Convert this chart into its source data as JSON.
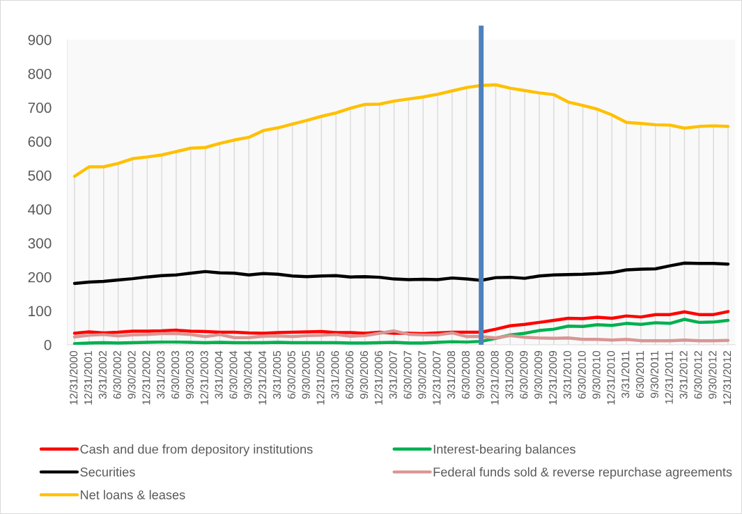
{
  "chart_data": {
    "type": "line",
    "categories": [
      "12/31/2000",
      "12/31/2001",
      "3/31/2002",
      "6/30/2002",
      "9/30/2002",
      "12/31/2002",
      "3/31/2003",
      "6/30/2003",
      "9/30/2003",
      "12/31/2003",
      "3/31/2004",
      "6/30/2004",
      "9/30/2004",
      "12/31/2004",
      "3/31/2005",
      "6/30/2005",
      "9/30/2005",
      "12/31/2005",
      "3/31/2006",
      "6/30/2006",
      "9/30/2006",
      "12/31/2006",
      "3/31/2007",
      "6/30/2007",
      "9/30/2007",
      "12/31/2007",
      "3/31/2008",
      "6/30/2008",
      "9/30/2008",
      "12/31/2008",
      "3/31/2009",
      "6/30/2009",
      "9/30/2009",
      "12/31/2009",
      "3/31/2010",
      "6/30/2010",
      "9/30/2010",
      "12/31/2010",
      "3/31/2011",
      "6/30/2011",
      "9/30/2011",
      "12/31/2011",
      "3/31/2012",
      "6/30/2012",
      "9/30/2012",
      "12/31/2012"
    ],
    "series": [
      {
        "name": "Cash and due from depository institutions",
        "color": "#ff0000",
        "values": [
          34,
          38,
          35,
          37,
          40,
          40,
          41,
          43,
          40,
          39,
          37,
          37,
          35,
          34,
          36,
          37,
          38,
          39,
          36,
          36,
          34,
          37,
          34,
          34,
          33,
          35,
          37,
          37,
          37,
          46,
          56,
          60,
          66,
          72,
          78,
          77,
          81,
          78,
          85,
          82,
          89,
          89,
          97,
          89,
          89,
          98
        ]
      },
      {
        "name": "Interest-bearing balances",
        "color": "#00b050",
        "values": [
          3,
          5,
          6,
          5,
          6,
          7,
          8,
          8,
          7,
          6,
          7,
          6,
          6,
          6,
          7,
          6,
          6,
          6,
          6,
          5,
          5,
          6,
          7,
          5,
          5,
          7,
          9,
          8,
          10,
          19,
          29,
          34,
          42,
          46,
          55,
          54,
          59,
          57,
          63,
          60,
          65,
          63,
          75,
          66,
          67,
          72
        ]
      },
      {
        "name": "Securities",
        "color": "#000000",
        "values": [
          181,
          185,
          187,
          191,
          195,
          200,
          204,
          206,
          211,
          216,
          212,
          211,
          206,
          210,
          208,
          203,
          201,
          203,
          204,
          200,
          201,
          199,
          194,
          192,
          193,
          192,
          197,
          194,
          190,
          198,
          199,
          196,
          203,
          206,
          207,
          208,
          210,
          213,
          221,
          223,
          224,
          233,
          241,
          240,
          240,
          238
        ]
      },
      {
        "name": "Federal funds sold & reverse repurchase agreements",
        "color": "#d99694",
        "values": [
          23,
          28,
          30,
          26,
          29,
          30,
          33,
          33,
          30,
          24,
          30,
          21,
          21,
          25,
          26,
          24,
          27,
          28,
          30,
          25,
          27,
          34,
          41,
          31,
          29,
          29,
          35,
          24,
          24,
          20,
          27,
          22,
          20,
          19,
          20,
          16,
          16,
          14,
          16,
          12,
          12,
          12,
          14,
          12,
          12,
          13
        ]
      },
      {
        "name": "Net loans & leases",
        "color": "#ffc000",
        "values": [
          497,
          525,
          525,
          535,
          549,
          554,
          560,
          570,
          580,
          582,
          594,
          604,
          612,
          632,
          640,
          651,
          662,
          674,
          684,
          698,
          709,
          710,
          719,
          725,
          731,
          739,
          749,
          759,
          765,
          767,
          757,
          750,
          743,
          738,
          716,
          706,
          695,
          678,
          656,
          653,
          649,
          648,
          639,
          644,
          646,
          644
        ]
      }
    ],
    "ylim": [
      0,
      900
    ],
    "yticks": [
      0,
      100,
      200,
      300,
      400,
      500,
      600,
      700,
      800,
      900
    ],
    "grid": "x",
    "legend": "bottom",
    "ref_lines": [
      {
        "axis": "x",
        "value": "9/30/2008",
        "color": "#4f81bd"
      }
    ]
  }
}
